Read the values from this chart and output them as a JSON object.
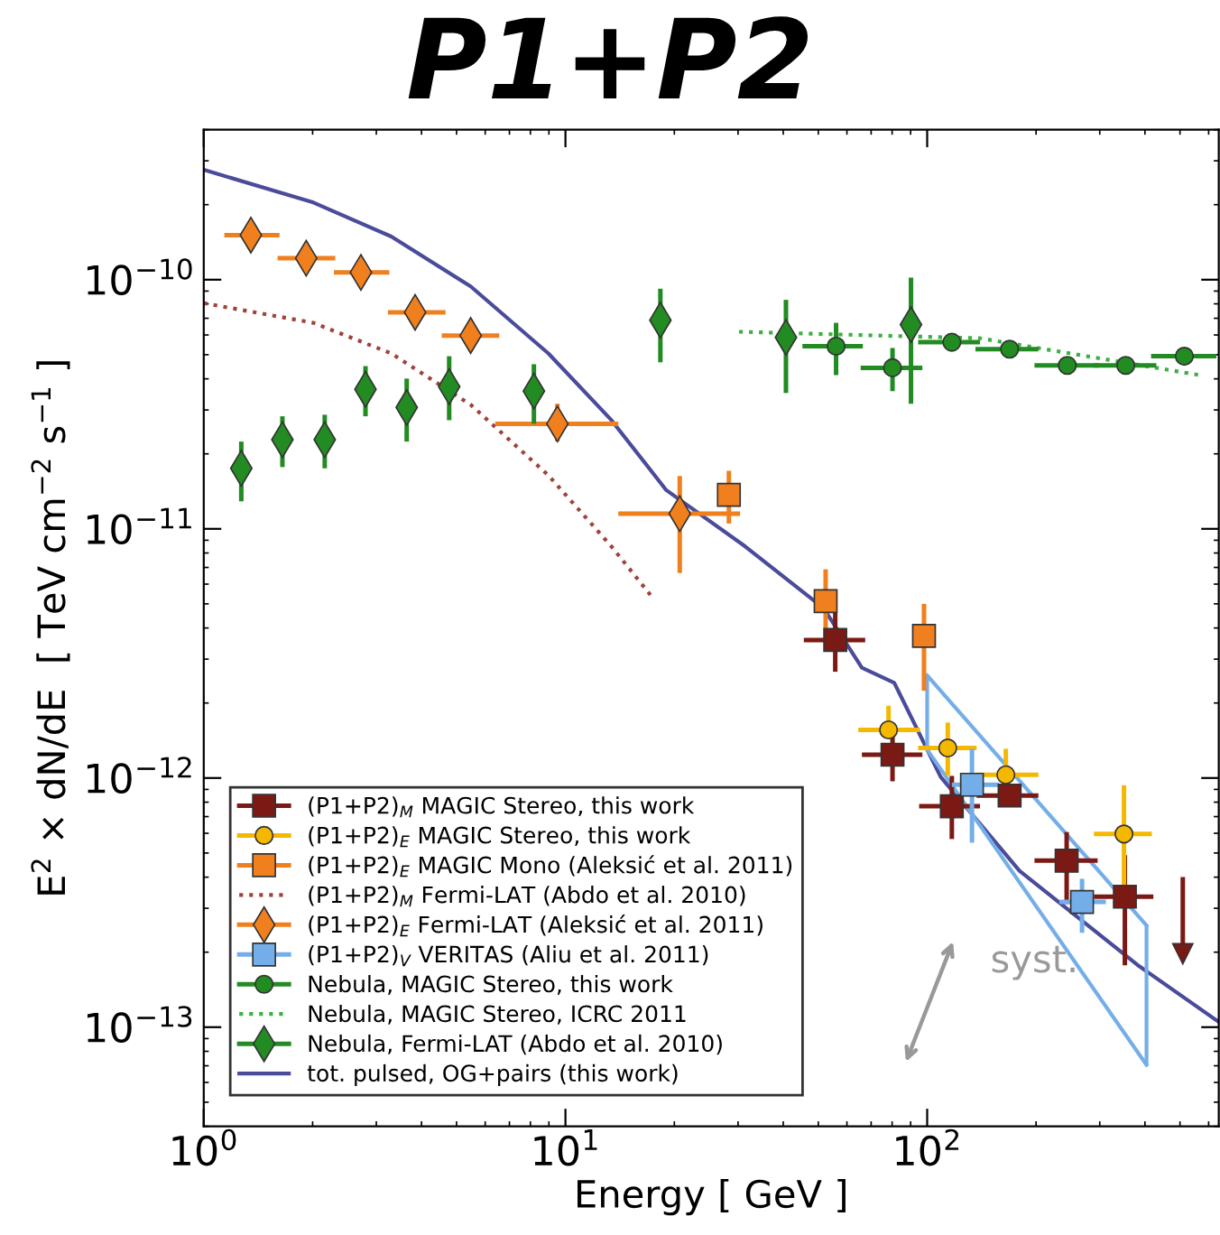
{
  "chart_data": {
    "type": "scatter",
    "title": "P1+P2",
    "xlabel": "Energy [ GeV ]",
    "ylabel": "E$^{2}$ × dN/dE  [ TeV cm$^{−2}$ s$^{−1}$ ]",
    "log": "xy",
    "xlim": [
      1,
      640
    ],
    "ylim": [
      4e-14,
      4e-10
    ],
    "xticks": [
      {
        "value": 1,
        "label": "10$^{0}$"
      },
      {
        "value": 10,
        "label": "10$^{1}$"
      },
      {
        "value": 100,
        "label": "10$^{2}$"
      }
    ],
    "yticks": [
      {
        "value": 1e-13,
        "label": "10$^{−13}$"
      },
      {
        "value": 1e-12,
        "label": "10$^{−12}$"
      },
      {
        "value": 1e-11,
        "label": "10$^{−11}$"
      },
      {
        "value": 1e-10,
        "label": "10$^{−10}$"
      }
    ],
    "grid": false,
    "legend": "bottom left",
    "annotations": [
      "syst."
    ],
    "series": [
      {
        "type": "scatter",
        "name": "(P1+P2)$_{M}$ MAGIC Stereo, this work",
        "color": "#7b1a14",
        "marker": "square",
        "x": [
          55.7,
          80.2,
          117,
          169,
          243,
          352
        ],
        "values": [
          3.58e-12,
          1.24e-12,
          7.7e-13,
          8.5e-13,
          4.66e-13,
          3.34e-13
        ],
        "errors": [
          [
            2.67e-12,
            4.61e-12
          ],
          [
            9.7e-13,
            1.5e-12
          ],
          [
            5.69e-13,
            1.02e-12
          ],
          null,
          [
            3.12e-13,
            6.07e-13
          ],
          [
            1.77e-13,
            4.9e-13
          ]
        ],
        "xerrors": [
          [
            45.6,
            67.4
          ],
          [
            66,
            97
          ],
          [
            95,
            140
          ],
          [
            137,
            203
          ],
          [
            198,
            296
          ],
          [
            289,
            422
          ]
        ]
      },
      {
        "type": "scatter",
        "name": "(P1+P2)$_{E}$ MAGIC Stereo, this work",
        "color": "#f5b800",
        "marker": "circle",
        "x": [
          78.2,
          114,
          165,
          350
        ],
        "values": [
          1.56e-12,
          1.32e-12,
          1.03e-12,
          5.96e-13
        ],
        "errors": [
          [
            1.56e-12,
            1.95e-12
          ],
          [
            1.02e-12,
            1.67e-12
          ],
          [
            1.03e-12,
            1.31e-12
          ],
          [
            3.69e-13,
            9.35e-13
          ]
        ],
        "xerrors": [
          [
            64.5,
            95.5
          ],
          [
            94.4,
            137
          ],
          [
            136,
            203
          ],
          [
            289,
            418
          ]
        ]
      },
      {
        "type": "scatter",
        "name": "(P1+P2)$_{E}$ MAGIC Mono (Aleksić et al. 2011)",
        "color": "#f07f1e",
        "marker": "square",
        "x": [
          28.3,
          52.4,
          98
        ],
        "values": [
          1.37e-11,
          5.13e-12,
          3.72e-12
        ],
        "errors": [
          [
            1.05e-11,
            1.71e-11
          ],
          [
            3.97e-12,
            6.88e-12
          ],
          [
            2.24e-12,
            5e-12
          ]
        ]
      },
      {
        "type": "line",
        "name": "(P1+P2)$_{M}$ Fermi-LAT (Abdo et al. 2010)",
        "color": "#a0413a",
        "line_style": "dotted",
        "x": [
          1,
          2.01,
          3.3,
          5.47,
          8.97,
          13.4,
          17.3
        ],
        "values": [
          8.05e-11,
          6.71e-11,
          5.06e-11,
          3.15e-11,
          1.64e-11,
          8.5e-12,
          5.36e-12
        ]
      },
      {
        "type": "scatter",
        "name": "(P1+P2)$_{E}$ Fermi-LAT (Aleksić et al. 2011)",
        "color": "#f07f1e",
        "marker": "diamond",
        "x": [
          1.35,
          1.92,
          2.72,
          3.84,
          5.47,
          9.5,
          20.7
        ],
        "values": [
          1.51e-10,
          1.22e-10,
          1.07e-10,
          7.4e-11,
          5.97e-11,
          2.64e-11,
          1.15e-11
        ],
        "errors": [
          null,
          null,
          null,
          null,
          null,
          [
            2.24e-11,
            3.18e-11
          ],
          [
            6.65e-12,
            1.63e-11
          ]
        ],
        "xerrors": [
          [
            1.14,
            1.62
          ],
          [
            1.6,
            2.31
          ],
          [
            2.29,
            3.26
          ],
          [
            3.23,
            4.66
          ],
          [
            4.55,
            6.56
          ],
          [
            6.4,
            14.0
          ],
          [
            14.0,
            30.4
          ]
        ]
      },
      {
        "type": "scatter",
        "name": "(P1+P2)$_{V}$ VERITAS (Aliu et al. 2011)",
        "color": "#74aee8",
        "marker": "square",
        "x": [
          133,
          268
        ],
        "values": [
          9.4e-13,
          3.18e-13
        ],
        "errors": [
          [
            5.5e-13,
            1.31e-12
          ],
          [
            2.39e-13,
            3.94e-13
          ]
        ],
        "xerrors": [
          [
            117,
            158
          ],
          [
            232,
            312
          ]
        ]
      },
      {
        "type": "scatter",
        "name": "Nebula, MAGIC Stereo, this work",
        "color": "#228b22",
        "marker": "circle",
        "x": [
          56.0,
          80.2,
          117,
          169,
          244,
          354,
          514
        ],
        "values": [
          5.41e-11,
          4.43e-11,
          5.61e-11,
          5.26e-11,
          4.53e-11,
          4.53e-11,
          4.93e-11
        ],
        "errors": [
          [
            4.14e-11,
            6.71e-11
          ],
          [
            3.57e-11,
            5.32e-11
          ],
          null,
          null,
          null,
          null,
          null
        ],
        "xerrors": [
          [
            45.2,
            66.4
          ],
          [
            65.5,
            97
          ],
          [
            94.4,
            140
          ],
          [
            136,
            203
          ],
          [
            198,
            298
          ],
          [
            289,
            430
          ],
          [
            416,
            630
          ]
        ]
      },
      {
        "type": "line",
        "name": "Nebula, MAGIC Stereo, ICRC 2011",
        "color": "#3cb043",
        "line_style": "dotted",
        "x": [
          30.2,
          140,
          566
        ],
        "values": [
          6.18e-11,
          5.82e-11,
          4.14e-11
        ]
      },
      {
        "type": "scatter",
        "name": "Nebula, Fermi-LAT (Abdo et al. 2010)",
        "color": "#228b22",
        "marker": "diamond",
        "x": [
          1.27,
          1.65,
          2.16,
          2.8,
          3.64,
          4.77,
          8.18,
          18.3,
          40.7,
          90.2
        ],
        "values": [
          1.75e-11,
          2.28e-11,
          2.28e-11,
          3.63e-11,
          3.07e-11,
          3.72e-11,
          3.57e-11,
          6.88e-11,
          5.87e-11,
          6.6e-11
        ],
        "errors": [
          [
            1.29e-11,
            2.24e-11
          ],
          [
            1.77e-11,
            2.83e-11
          ],
          [
            1.75e-11,
            2.87e-11
          ],
          [
            2.83e-11,
            4.5e-11
          ],
          [
            2.24e-11,
            4.01e-11
          ],
          [
            2.73e-11,
            4.93e-11
          ],
          [
            2.64e-11,
            4.58e-11
          ],
          [
            4.66e-11,
            9.2e-11
          ],
          [
            3.51e-11,
            8.3e-11
          ],
          [
            3.18e-11,
            1.02e-10
          ]
        ]
      },
      {
        "type": "line",
        "name": "tot. pulsed, OG+pairs (this work)",
        "color": "#4b4b9b",
        "line_style": "solid",
        "x": [
          1,
          2.01,
          3.3,
          5.47,
          8.97,
          13.4,
          19.0,
          31.4,
          51.7,
          66,
          81.1,
          109,
          180,
          381,
          640
        ],
        "values": [
          2.76e-10,
          2.04e-10,
          1.49e-10,
          9.4e-11,
          5.06e-11,
          2.73e-11,
          1.43e-11,
          8.5e-12,
          4.81e-12,
          2.77e-12,
          2.41e-12,
          1.01e-12,
          4.24e-13,
          1.78e-13,
          1.05e-13
        ]
      },
      {
        "type": "line",
        "color": "#74aee8",
        "line_style": "solid",
        "x": [
          100,
          404
        ],
        "values": [
          2.58e-12,
          2.56e-13
        ],
        "errors": [
          [
            1.3e-12,
            2.58e-12
          ],
          [
            7.06e-14,
            2.56e-13
          ]
        ]
      },
      {
        "type": "line",
        "color": "#74aee8",
        "line_style": "solid",
        "x": [
          100,
          404
        ],
        "values": [
          1.3e-12,
          7.06e-14
        ]
      },
      {
        "color": "#7b1a14",
        "marker": "triangle",
        "x": [
          509
        ],
        "values": [
          1.97e-13
        ],
        "errors": [
          [
            1.97e-13,
            4e-13
          ]
        ]
      }
    ]
  }
}
